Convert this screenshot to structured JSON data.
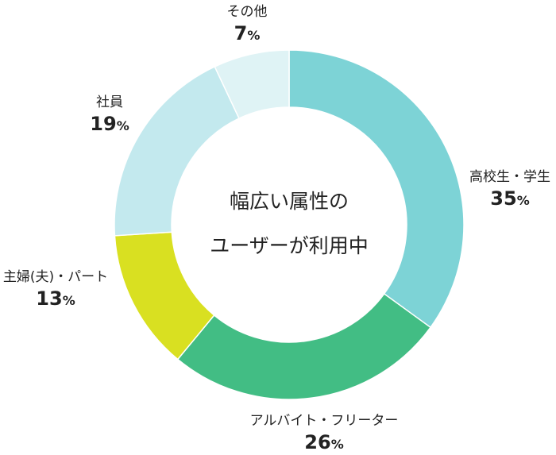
{
  "chart_data": {
    "type": "pie",
    "donut": true,
    "center_lines": [
      "幅広い属性の",
      "ユーザーが利用中"
    ],
    "slices": [
      {
        "label": "高校生・学生",
        "value": 35,
        "color": "#7dd3d6"
      },
      {
        "label": "アルバイト・フリーター",
        "value": 26,
        "color": "#42bd84"
      },
      {
        "label": "主婦(夫)・パート",
        "value": 13,
        "color": "#d9e021"
      },
      {
        "label": "社員",
        "value": 19,
        "color": "#c3e9ee"
      },
      {
        "label": "その他",
        "value": 7,
        "color": "#dff3f5"
      }
    ],
    "unit": "%"
  }
}
